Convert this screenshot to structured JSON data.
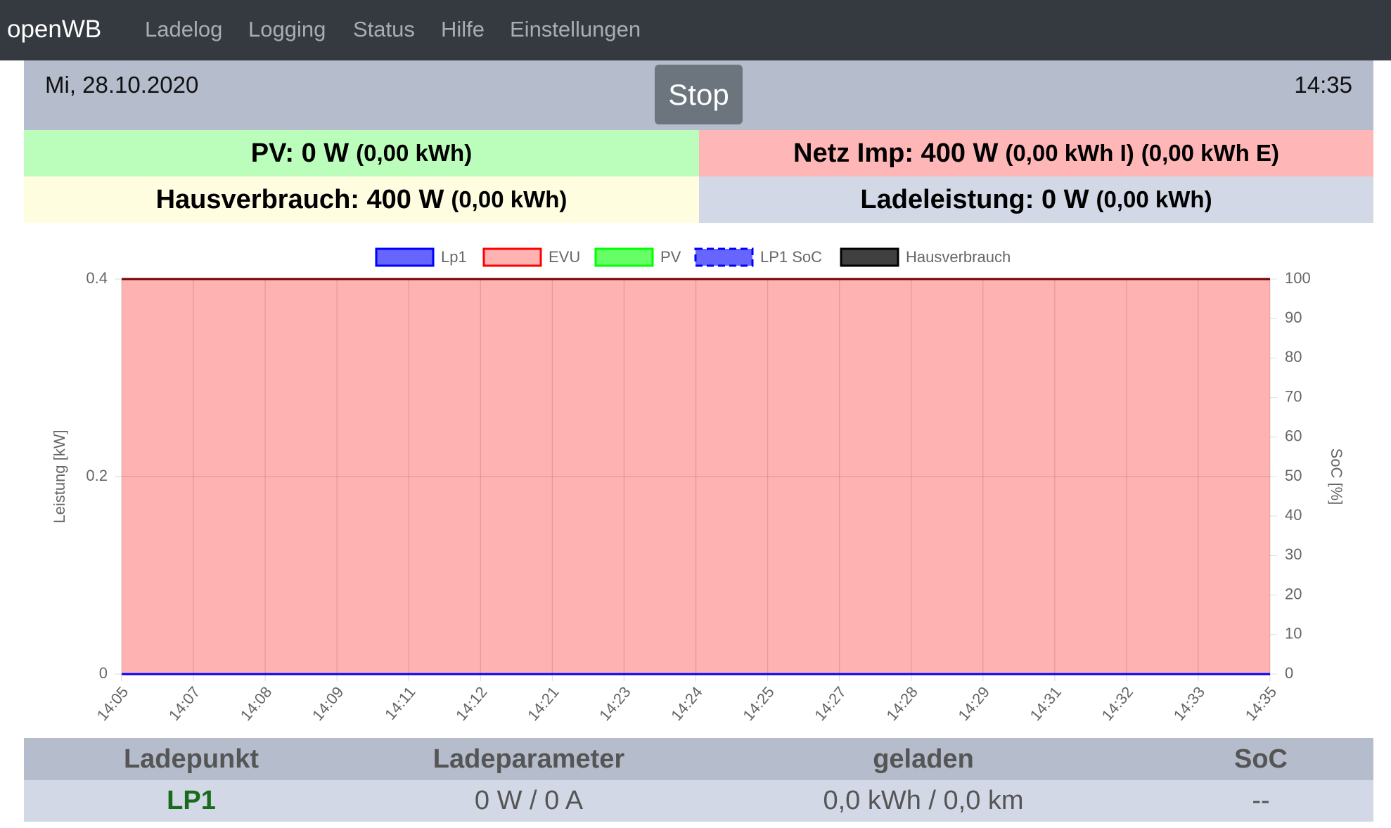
{
  "nav": {
    "brand": "openWB",
    "links": [
      "Ladelog",
      "Logging",
      "Status",
      "Hilfe",
      "Einstellungen"
    ]
  },
  "header": {
    "date": "Mi, 28.10.2020",
    "button": "Stop",
    "time": "14:35"
  },
  "summary": {
    "pv": {
      "main": "PV: 0 W",
      "sub": "(0,00 kWh)"
    },
    "netz": {
      "main": "Netz Imp: 400 W",
      "sub1": "(0,00 kWh I)",
      "sub2": "(0,00 kWh E)"
    },
    "haus": {
      "main": "Hausverbrauch: 400 W",
      "sub": "(0,00 kWh)"
    },
    "lade": {
      "main": "Ladeleistung: 0 W",
      "sub": "(0,00 kWh)"
    }
  },
  "chart_data": {
    "type": "line",
    "categories": [
      "14:05",
      "14:07",
      "14:08",
      "14:09",
      "14:11",
      "14:12",
      "14:21",
      "14:23",
      "14:24",
      "14:25",
      "14:27",
      "14:28",
      "14:29",
      "14:31",
      "14:32",
      "14:33",
      "14:35"
    ],
    "series": [
      {
        "name": "Lp1",
        "color": "#0000ff",
        "values": [
          0,
          0,
          0,
          0,
          0,
          0,
          0,
          0,
          0,
          0,
          0,
          0,
          0,
          0,
          0,
          0,
          0
        ]
      },
      {
        "name": "EVU",
        "color": "#ff0000",
        "fill": true,
        "values": [
          0.4,
          0.4,
          0.4,
          0.4,
          0.4,
          0.4,
          0.4,
          0.4,
          0.4,
          0.4,
          0.4,
          0.4,
          0.4,
          0.4,
          0.4,
          0.4,
          0.4
        ]
      },
      {
        "name": "PV",
        "color": "#00ff00",
        "values": [
          0,
          0,
          0,
          0,
          0,
          0,
          0,
          0,
          0,
          0,
          0,
          0,
          0,
          0,
          0,
          0,
          0
        ]
      },
      {
        "name": "LP1 SoC",
        "color": "#0000ff",
        "dashed": true,
        "axis": "y2",
        "values": [
          null,
          null,
          null,
          null,
          null,
          null,
          null,
          null,
          null,
          null,
          null,
          null,
          null,
          null,
          null,
          null,
          null
        ]
      },
      {
        "name": "Hausverbrauch",
        "color": "#000000",
        "values": [
          0.4,
          0.4,
          0.4,
          0.4,
          0.4,
          0.4,
          0.4,
          0.4,
          0.4,
          0.4,
          0.4,
          0.4,
          0.4,
          0.4,
          0.4,
          0.4,
          0.4
        ]
      }
    ],
    "y_label": "Leistung [kW]",
    "y2_label": "SoC [%]",
    "ylim": [
      0,
      0.4
    ],
    "yticks": [
      0,
      0.2,
      0.4
    ],
    "y2lim": [
      0,
      100
    ],
    "y2ticks": [
      0,
      10,
      20,
      30,
      40,
      50,
      60,
      70,
      80,
      90,
      100
    ],
    "grid": true
  },
  "table": {
    "headers": [
      "Ladepunkt",
      "Ladeparameter",
      "geladen",
      "SoC"
    ],
    "rows": [
      [
        "LP1",
        "0 W / 0 A",
        "0,0 kWh / 0,0 km",
        "--"
      ]
    ]
  }
}
